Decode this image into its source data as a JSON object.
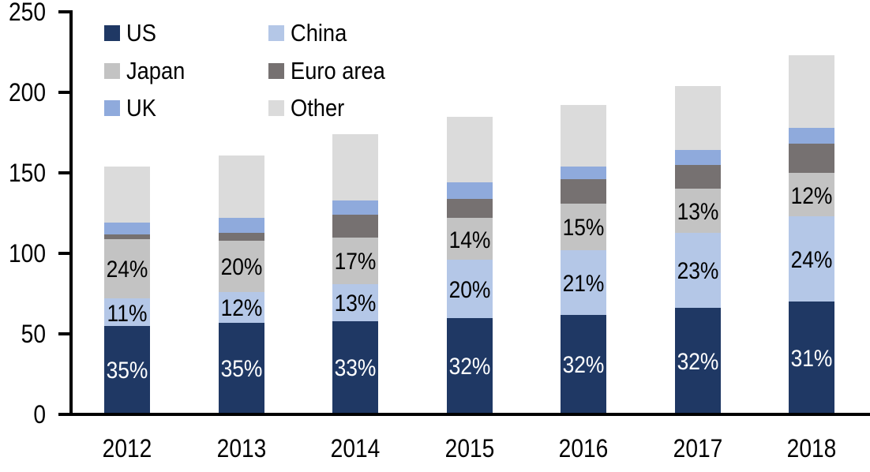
{
  "chart_data": {
    "type": "bar",
    "stacked": true,
    "title": "",
    "xlabel": "",
    "ylabel": "",
    "categories": [
      "2012",
      "2013",
      "2014",
      "2015",
      "2016",
      "2017",
      "2018"
    ],
    "series": [
      {
        "name": "US",
        "color": "#1f3864",
        "values": [
          54,
          56,
          57,
          59,
          61,
          65,
          69
        ],
        "labels": [
          "35%",
          "35%",
          "33%",
          "32%",
          "32%",
          "32%",
          "31%"
        ],
        "label_color": "#ffffff"
      },
      {
        "name": "China",
        "color": "#b4c7e7",
        "values": [
          17,
          19,
          23,
          36,
          40,
          47,
          53
        ],
        "labels": [
          "11%",
          "12%",
          "13%",
          "20%",
          "21%",
          "23%",
          "24%"
        ],
        "label_color": "#000000"
      },
      {
        "name": "Japan",
        "color": "#c3c3c3",
        "values": [
          37,
          32,
          29,
          26,
          29,
          27,
          27
        ],
        "labels": [
          "24%",
          "20%",
          "17%",
          "14%",
          "15%",
          "13%",
          "12%"
        ],
        "label_color": "#000000"
      },
      {
        "name": "Euro area",
        "color": "#767171",
        "values": [
          3,
          5,
          14,
          12,
          15,
          15,
          18
        ]
      },
      {
        "name": "UK",
        "color": "#8faadc",
        "values": [
          7,
          9,
          9,
          10,
          8,
          9,
          10
        ]
      },
      {
        "name": "Other",
        "color": "#dbdbdb",
        "values": [
          35,
          39,
          41,
          41,
          38,
          40,
          45
        ]
      }
    ],
    "totals": [
      153,
      160,
      173,
      184,
      191,
      203,
      222
    ],
    "ylim": [
      0,
      250
    ],
    "yticks": [
      "0",
      "50",
      "100",
      "150",
      "200",
      "250"
    ],
    "grid": false,
    "legend_position": "top-left",
    "legend_columns": [
      [
        "US",
        "Japan",
        "UK"
      ],
      [
        "China",
        "Euro area",
        "Other"
      ]
    ],
    "axis_color": "#000000",
    "background": "#ffffff"
  }
}
